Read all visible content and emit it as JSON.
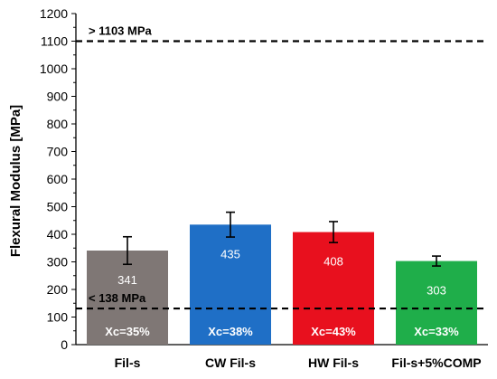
{
  "chart_data": {
    "type": "bar",
    "title": "",
    "xlabel": "",
    "ylabel": "Flexural Modulus [MPa]",
    "ylim": [
      0,
      1200
    ],
    "ytick_step": 100,
    "categories": [
      "Fil-s",
      "CW Fil-s",
      "HW Fil-s",
      "Fil-s+5%COMP"
    ],
    "values": [
      341,
      435,
      408,
      303
    ],
    "value_labels": [
      "341",
      "435",
      "408",
      "303"
    ],
    "errors": [
      50,
      45,
      38,
      18
    ],
    "crystallinity_labels": [
      "Xc=35%",
      "Xc=38%",
      "Xc=43%",
      "Xc=33%"
    ],
    "bar_colors": [
      "#7f7775",
      "#1f6fc6",
      "#e8101e",
      "#1fae4a"
    ],
    "reference_lines": [
      {
        "value": 1100,
        "label": "> 1103 MPa"
      },
      {
        "value": 131,
        "label": "< 138 MPa"
      }
    ],
    "grid": false,
    "legend": "none"
  }
}
